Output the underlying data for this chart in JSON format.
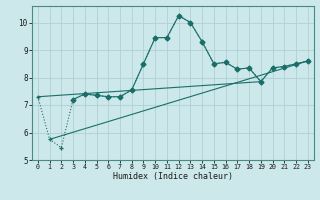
{
  "xlabel": "Humidex (Indice chaleur)",
  "xlim": [
    -0.5,
    23.5
  ],
  "ylim": [
    5,
    10.6
  ],
  "yticks": [
    5,
    6,
    7,
    8,
    9,
    10
  ],
  "xticks": [
    0,
    1,
    2,
    3,
    4,
    5,
    6,
    7,
    8,
    9,
    10,
    11,
    12,
    13,
    14,
    15,
    16,
    17,
    18,
    19,
    20,
    21,
    22,
    23
  ],
  "bg_color": "#cce8ea",
  "grid_color": "#b0d0d4",
  "line_color": "#1a6e6a",
  "line1_dotted": {
    "x": [
      0,
      1,
      2,
      3,
      4,
      5,
      6,
      7,
      8,
      9,
      10,
      11,
      12,
      13,
      14,
      15,
      16,
      17,
      18,
      19,
      20,
      21,
      22,
      23
    ],
    "y": [
      7.3,
      5.75,
      5.45,
      7.2,
      7.4,
      7.35,
      7.3,
      7.3,
      7.55,
      8.5,
      9.45,
      9.45,
      10.25,
      10.0,
      9.3,
      8.5,
      8.55,
      8.3,
      8.35,
      7.85,
      8.35,
      8.4,
      8.5,
      8.6
    ]
  },
  "line2_solid": {
    "x": [
      3,
      4,
      5,
      6,
      7,
      8,
      9,
      10,
      11,
      12,
      13,
      14,
      15,
      16,
      17,
      18,
      19,
      20,
      21,
      22,
      23
    ],
    "y": [
      7.2,
      7.4,
      7.35,
      7.3,
      7.3,
      7.55,
      8.5,
      9.45,
      9.45,
      10.25,
      10.0,
      9.3,
      8.5,
      8.55,
      8.3,
      8.35,
      7.85,
      8.35,
      8.4,
      8.5,
      8.6
    ]
  },
  "line3_diag1": {
    "x": [
      1,
      23
    ],
    "y": [
      5.75,
      8.6
    ]
  },
  "line4_diag2": {
    "x": [
      0,
      19
    ],
    "y": [
      7.3,
      7.85
    ]
  }
}
